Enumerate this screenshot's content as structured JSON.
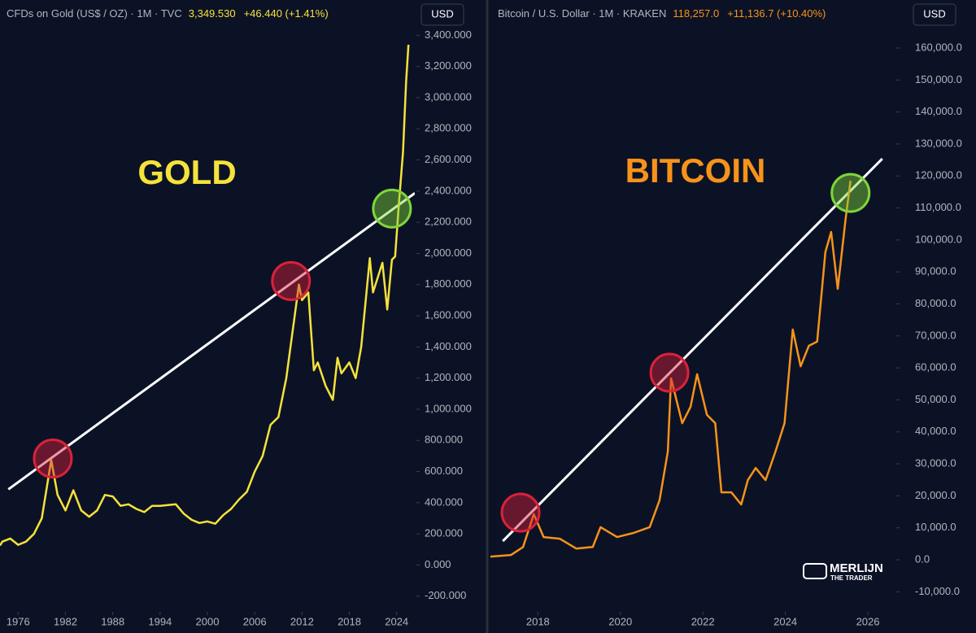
{
  "chart_data": [
    {
      "type": "line",
      "title": "CFDs on Gold (US$ / OZ) · 1M · TVC",
      "price": "3,349.530",
      "change": "+46.440 (+1.41%)",
      "currency": "USD",
      "label": "GOLD",
      "color": "#f5e33b",
      "x": [
        1973.7,
        1974,
        1975,
        1976,
        1977,
        1978,
        1979,
        1980.2,
        1981,
        1982,
        1983,
        1984,
        1985,
        1986,
        1987,
        1988,
        1989,
        1990,
        1991,
        1992,
        1993,
        1994,
        1995,
        1996,
        1997,
        1998,
        1999,
        2000,
        2001,
        2002,
        2003,
        2004,
        2005,
        2006,
        2007,
        2008,
        2009,
        2010,
        2011.6,
        2012,
        2012.8,
        2013.5,
        2014,
        2015,
        2015.9,
        2016.5,
        2017,
        2018,
        2018.8,
        2019.5,
        2020.6,
        2021,
        2022.2,
        2022.8,
        2023.4,
        2023.8,
        2024.3,
        2024.8,
        2025.2,
        2025.5
      ],
      "values": [
        125,
        150,
        170,
        130,
        150,
        200,
        300,
        674,
        450,
        350,
        480,
        350,
        310,
        350,
        450,
        440,
        380,
        390,
        360,
        340,
        380,
        380,
        385,
        390,
        330,
        290,
        270,
        280,
        265,
        320,
        360,
        420,
        470,
        600,
        700,
        900,
        950,
        1200,
        1800,
        1700,
        1750,
        1250,
        1300,
        1150,
        1060,
        1330,
        1230,
        1300,
        1200,
        1400,
        1970,
        1750,
        1940,
        1640,
        1960,
        1980,
        2330,
        2650,
        3100,
        3340
      ],
      "xlim": [
        1973.7,
        2026.3
      ],
      "xticks": [
        1976,
        1982,
        1988,
        1994,
        2000,
        2006,
        2012,
        2018,
        2024
      ],
      "ylim": [
        -290,
        3470
      ],
      "yticks": [
        {
          "value": -200,
          "label": "-200.000"
        },
        {
          "value": 0,
          "label": "0.000"
        },
        {
          "value": 200,
          "label": "200.000"
        },
        {
          "value": 400,
          "label": "400.000"
        },
        {
          "value": 600,
          "label": "600.000"
        },
        {
          "value": 800,
          "label": "800.000"
        },
        {
          "value": 1000,
          "label": "1,000.000"
        },
        {
          "value": 1200,
          "label": "1,200.000"
        },
        {
          "value": 1400,
          "label": "1,400.000"
        },
        {
          "value": 1600,
          "label": "1,600.000"
        },
        {
          "value": 1800,
          "label": "1,800.000"
        },
        {
          "value": 2000,
          "label": "2,000.000"
        },
        {
          "value": 2200,
          "label": "2,200.000"
        },
        {
          "value": 2400,
          "label": "2,400.000"
        },
        {
          "value": 2600,
          "label": "2,600.000"
        },
        {
          "value": 2800,
          "label": "2,800.000"
        },
        {
          "value": 3000,
          "label": "3,000.000"
        },
        {
          "value": 3200,
          "label": "3,200.000"
        },
        {
          "value": 3400,
          "label": "3,400.000"
        }
      ],
      "trendline": {
        "x": [
          1974.76,
          2026.3
        ],
        "y": [
          486,
          2387
        ]
      },
      "highlights": [
        {
          "x": 1980.4,
          "y": 684,
          "color": "#d9223a"
        },
        {
          "x": 2010.6,
          "y": 1823,
          "color": "#d9223a"
        },
        {
          "x": 2023.4,
          "y": 2288,
          "color": "#7fd63a"
        }
      ]
    },
    {
      "type": "line",
      "title": "Bitcoin / U.S. Dollar · 1M · KRAKEN",
      "price": "118,257.0",
      "change": "+11,136.7 (+10.40%)",
      "currency": "USD",
      "label": "BITCOIN",
      "color": "#f7931a",
      "watermark": [
        "MERLIJN",
        "THE TRADER"
      ],
      "x": [
        2016.85,
        2017.35,
        2017.64,
        2017.9,
        2018.14,
        2018.53,
        2018.93,
        2019.33,
        2019.52,
        2019.92,
        2020.32,
        2020.71,
        2020.95,
        2021.15,
        2021.23,
        2021.5,
        2021.7,
        2021.86,
        2022.1,
        2022.3,
        2022.45,
        2022.69,
        2022.93,
        2023.09,
        2023.28,
        2023.52,
        2023.76,
        2023.98,
        2024.18,
        2024.37,
        2024.57,
        2024.77,
        2024.97,
        2025.11,
        2025.27,
        2025.46,
        2025.58
      ],
      "values": [
        1000,
        1500,
        4000,
        14250,
        7100,
        6600,
        3500,
        4000,
        10200,
        7100,
        8400,
        10200,
        18600,
        33800,
        56700,
        42700,
        47800,
        58000,
        45300,
        42700,
        21100,
        21100,
        17300,
        24900,
        28700,
        24900,
        33800,
        42700,
        72000,
        60500,
        66900,
        68200,
        96200,
        102500,
        84700,
        106400,
        118500
      ],
      "xlim": [
        2016.85,
        2026.65
      ],
      "xticks": [
        2018,
        2020,
        2022,
        2024,
        2026
      ],
      "ylim": [
        -15770,
        167380
      ],
      "yticks": [
        {
          "value": -10000,
          "label": "-10,000.0"
        },
        {
          "value": 0,
          "label": "0.0"
        },
        {
          "value": 10000,
          "label": "10,000.0"
        },
        {
          "value": 20000,
          "label": "20,000.0"
        },
        {
          "value": 30000,
          "label": "30,000.0"
        },
        {
          "value": 40000,
          "label": "40,000.0"
        },
        {
          "value": 50000,
          "label": "50,000.0"
        },
        {
          "value": 60000,
          "label": "60,000.0"
        },
        {
          "value": 70000,
          "label": "70,000.0"
        },
        {
          "value": 80000,
          "label": "80,000.0"
        },
        {
          "value": 90000,
          "label": "90,000.0"
        },
        {
          "value": 100000,
          "label": "100,000.0"
        },
        {
          "value": 110000,
          "label": "110,000.0"
        },
        {
          "value": 120000,
          "label": "120,000.0"
        },
        {
          "value": 130000,
          "label": "130,000.0"
        },
        {
          "value": 140000,
          "label": "140,000.0"
        },
        {
          "value": 150000,
          "label": "150,000.0"
        },
        {
          "value": 160000,
          "label": "160,000.0"
        }
      ],
      "trendline": {
        "x": [
          2017.15,
          2026.35
        ],
        "y": [
          5850,
          125400
        ]
      },
      "highlights": [
        {
          "x": 2017.58,
          "y": 14750,
          "color": "#d9223a"
        },
        {
          "x": 2021.19,
          "y": 58500,
          "color": "#d9223a"
        },
        {
          "x": 2025.58,
          "y": 114700,
          "color": "#7fd63a"
        }
      ]
    }
  ]
}
